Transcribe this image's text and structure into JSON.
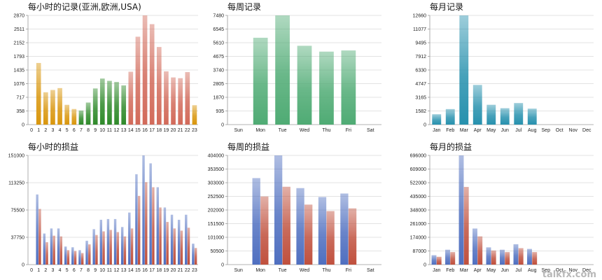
{
  "watermark": "talkfx.com",
  "colors": {
    "hour_asia": "#d9960c",
    "hour_europe": "#2f8a2a",
    "hour_usa": "#d26a5a",
    "weekly_records": "#4fab74",
    "monthly_records": "#2791ae",
    "profit_blue": "#4f6fc0",
    "profit_red": "#c0503d"
  },
  "chart_data": [
    {
      "id": "hourly-records",
      "type": "bar",
      "title": "每小时的记录(亚洲,欧洲,USA)",
      "categories": [
        "0",
        "1",
        "2",
        "3",
        "4",
        "5",
        "6",
        "7",
        "8",
        "9",
        "10",
        "11",
        "12",
        "13",
        "14",
        "15",
        "16",
        "17",
        "18",
        "19",
        "20",
        "21",
        "22",
        "23"
      ],
      "yticks": [
        "0",
        "358",
        "717",
        "1076",
        "1435",
        "1793",
        "2152",
        "2511",
        "2870"
      ],
      "ylim": [
        0,
        2870
      ],
      "series": [
        {
          "values": [
            0,
            1620,
            850,
            910,
            960,
            520,
            410,
            370,
            580,
            950,
            1210,
            1150,
            1120,
            1030,
            1390,
            2310,
            2870,
            2640,
            2040,
            1400,
            1240,
            1220,
            1380,
            510
          ]
        }
      ],
      "bar_groups": [
        "asia",
        "asia",
        "asia",
        "asia",
        "asia",
        "asia",
        "asia",
        "europe",
        "europe",
        "europe",
        "europe",
        "europe",
        "europe",
        "europe",
        "usa",
        "usa",
        "usa",
        "usa",
        "usa",
        "usa",
        "usa",
        "usa",
        "usa",
        "asia"
      ]
    },
    {
      "id": "weekly-records",
      "type": "bar",
      "title": "每周记录",
      "categories": [
        "Sun",
        "Mon",
        "Tue",
        "Wed",
        "Thu",
        "Fri",
        "Sat"
      ],
      "yticks": [
        "0",
        "935",
        "1870",
        "2805",
        "3740",
        "4675",
        "5610",
        "6545",
        "7480"
      ],
      "ylim": [
        0,
        7480
      ],
      "series": [
        {
          "values": [
            0,
            5950,
            7480,
            5400,
            5000,
            5080,
            0
          ]
        }
      ]
    },
    {
      "id": "monthly-records",
      "type": "bar",
      "title": "每月记录",
      "categories": [
        "Jan",
        "Feb",
        "Mar",
        "Apr",
        "May",
        "Jun",
        "Jul",
        "Aug",
        "Sep",
        "Oct",
        "Nov",
        "Dec"
      ],
      "yticks": [
        "0",
        "1582",
        "3165",
        "4747",
        "6330",
        "7912",
        "9495",
        "11077",
        "12660"
      ],
      "ylim": [
        0,
        12660
      ],
      "series": [
        {
          "values": [
            1200,
            1800,
            12660,
            4600,
            2300,
            1900,
            2500,
            1850,
            0,
            0,
            0,
            0
          ]
        }
      ]
    },
    {
      "id": "hourly-profit",
      "type": "bar",
      "title": "每小时的损益",
      "categories": [
        "0",
        "1",
        "2",
        "3",
        "4",
        "5",
        "6",
        "7",
        "8",
        "9",
        "10",
        "11",
        "12",
        "13",
        "14",
        "15",
        "16",
        "17",
        "18",
        "19",
        "20",
        "21",
        "22",
        "23"
      ],
      "yticks": [
        "0",
        "37750",
        "75500",
        "113250",
        "151000"
      ],
      "ylim": [
        0,
        151000
      ],
      "series": [
        {
          "values": [
            0,
            97000,
            43000,
            50000,
            50000,
            25000,
            24000,
            20000,
            33000,
            49000,
            62000,
            63000,
            63000,
            52000,
            72000,
            125000,
            151000,
            140000,
            107000,
            79000,
            69000,
            62000,
            69000,
            29000
          ]
        },
        {
          "values": [
            0,
            77000,
            31000,
            40000,
            39000,
            20000,
            19000,
            16000,
            28000,
            41000,
            46000,
            48000,
            45000,
            39000,
            50000,
            95000,
            114000,
            107000,
            79000,
            59000,
            50000,
            47000,
            51000,
            23000
          ]
        }
      ]
    },
    {
      "id": "weekly-profit",
      "type": "bar",
      "title": "每周的损益",
      "categories": [
        "Sun",
        "Mon",
        "Tue",
        "Wed",
        "Thu",
        "Fri",
        "Sat"
      ],
      "yticks": [
        "0",
        "50500",
        "101000",
        "151500",
        "202000",
        "252500",
        "303000",
        "353500",
        "404000"
      ],
      "ylim": [
        0,
        404000
      ],
      "series": [
        {
          "values": [
            0,
            320000,
            404000,
            283000,
            250000,
            263000,
            0
          ]
        },
        {
          "values": [
            0,
            252000,
            288000,
            222000,
            198000,
            208000,
            0
          ]
        }
      ]
    },
    {
      "id": "monthly-profit",
      "type": "bar",
      "title": "每月的损益",
      "categories": [
        "Jan",
        "Feb",
        "Mar",
        "Apr",
        "May",
        "Jun",
        "Jul",
        "Aug",
        "Sep",
        "Oct",
        "Nov",
        "Dec"
      ],
      "yticks": [
        "0",
        "87000",
        "174000",
        "261000",
        "348000",
        "435000",
        "522000",
        "609000",
        "696000"
      ],
      "ylim": [
        0,
        696000
      ],
      "series": [
        {
          "values": [
            60000,
            95000,
            696000,
            230000,
            110000,
            95000,
            130000,
            100000,
            0,
            0,
            0,
            0
          ]
        },
        {
          "values": [
            50000,
            80000,
            495000,
            180000,
            90000,
            80000,
            105000,
            80000,
            0,
            0,
            0,
            0
          ]
        }
      ]
    }
  ]
}
